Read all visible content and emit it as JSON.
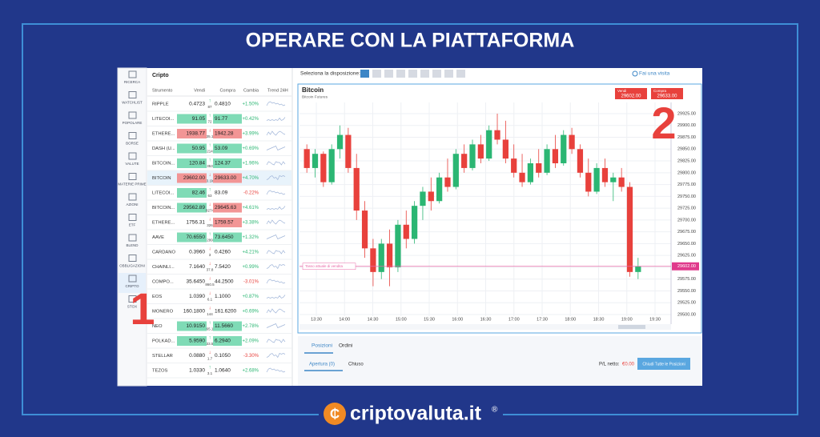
{
  "title": "OPERARE CON LA PIATTAFORMA",
  "sidebar": {
    "items": [
      "RICERCA",
      "WATCHLIST",
      "POPOLARE",
      "BORSE",
      "VALUTE",
      "MATERIE PRIME",
      "AZIONI",
      "ETF",
      "BLEND",
      "OBBLIGAZIONI",
      "CRIPTO",
      "STOX"
    ]
  },
  "table": {
    "section": "Cripto",
    "headers": [
      "Strumento",
      "Vendi",
      "Compra",
      "Cambia",
      "Trend 24H"
    ],
    "rows": [
      {
        "name": "RIPPLE",
        "sell": "0.4723",
        "spread": "87",
        "buy": "0.4810",
        "change": "+1.50%",
        "dir": "up",
        "sell_hl": null,
        "buy_hl": null
      },
      {
        "name": "LITECOI...",
        "sell": "91.05",
        "spread": "72",
        "buy": "91.77",
        "change": "+0.42%",
        "dir": "up",
        "sell_hl": "up",
        "buy_hl": "up"
      },
      {
        "name": "ETHERE...",
        "sell": "1938.77",
        "spread": "35.1",
        "buy": "1942.28",
        "change": "+3.99%",
        "dir": "down",
        "sell_hl": "down",
        "buy_hl": "down"
      },
      {
        "name": "DASH (U...",
        "sell": "50.95",
        "spread": "214",
        "buy": "53.09",
        "change": "+0.69%",
        "dir": "up",
        "sell_hl": "up",
        "buy_hl": "up"
      },
      {
        "name": "BITCOIN...",
        "sell": "120.84",
        "spread": "353",
        "buy": "124.37",
        "change": "+1.96%",
        "dir": "up",
        "sell_hl": "up",
        "buy_hl": "up"
      },
      {
        "name": "BITCOIN",
        "sell": "29602.00",
        "spread": "3.1k",
        "buy": "29633.00",
        "change": "+4.70%",
        "dir": "down",
        "sell_hl": "down",
        "buy_hl": "down"
      },
      {
        "name": "LITECOI...",
        "sell": "82.46",
        "spread": "63",
        "buy": "83.09",
        "change": "-0.22%",
        "dir": "up",
        "sell_hl": "up",
        "buy_hl": null
      },
      {
        "name": "BITCOIN...",
        "sell": "29562.89",
        "spread": "8274",
        "buy": "29645.63",
        "change": "+4.61%",
        "dir": "down",
        "sell_hl": "up",
        "buy_hl": "down"
      },
      {
        "name": "ETHERE...",
        "sell": "1756.31",
        "spread": "326",
        "buy": "1759.57",
        "change": "+3.38%",
        "dir": "down",
        "sell_hl": null,
        "buy_hl": "down"
      },
      {
        "name": "AAVE",
        "sell": "70.6550",
        "spread": "299",
        "buy": "73.6450",
        "change": "+1.32%",
        "dir": "up",
        "sell_hl": "up",
        "buy_hl": "up"
      },
      {
        "name": "CARDANO",
        "sell": "0.3960",
        "spread": "3",
        "buy": "0.4260",
        "change": "+4.21%",
        "dir": "down",
        "sell_hl": null,
        "buy_hl": null
      },
      {
        "name": "CHAINLI...",
        "sell": "7.1640",
        "spread": "37.8",
        "buy": "7.5420",
        "change": "+0.99%",
        "dir": "down",
        "sell_hl": null,
        "buy_hl": null
      },
      {
        "name": "COMPO...",
        "sell": "35.6450",
        "spread": "860.5",
        "buy": "44.2500",
        "change": "-3.01%",
        "dir": "down",
        "sell_hl": null,
        "buy_hl": null
      },
      {
        "name": "EOS",
        "sell": "1.0390",
        "spread": "6.1",
        "buy": "1.1000",
        "change": "+0.87%",
        "dir": "down",
        "sell_hl": null,
        "buy_hl": null
      },
      {
        "name": "MONERO",
        "sell": "160.1800",
        "spread": "144",
        "buy": "161.6200",
        "change": "+0.69%",
        "dir": "down",
        "sell_hl": null,
        "buy_hl": null
      },
      {
        "name": "NEO",
        "sell": "10.9150",
        "spread": "65.1",
        "buy": "11.5660",
        "change": "+2.78%",
        "dir": "up",
        "sell_hl": "up",
        "buy_hl": "up"
      },
      {
        "name": "POLKAD...",
        "sell": "5.9590",
        "spread": "33.5",
        "buy": "6.2940",
        "change": "+2.09%",
        "dir": "up",
        "sell_hl": "up",
        "buy_hl": "up"
      },
      {
        "name": "STELLAR",
        "sell": "0.0880",
        "spread": "1.7",
        "buy": "0.1050",
        "change": "-3.30%",
        "dir": "down",
        "sell_hl": null,
        "buy_hl": null
      },
      {
        "name": "TEZOS",
        "sell": "1.0330",
        "spread": "3.1",
        "buy": "1.0640",
        "change": "+2.68%",
        "dir": "up",
        "sell_hl": null,
        "buy_hl": null
      }
    ]
  },
  "chart": {
    "layout_label": "Seleziona la disposizione:",
    "visit_label": "Fai una visita",
    "instrument": "Bitcoin",
    "instrument_sub": "Bitcoin Futures",
    "sell_box": {
      "label": "Vendi",
      "value": "29602.00"
    },
    "buy_box": {
      "label": "Compra",
      "value": "29633.00"
    },
    "ylim": [
      29485,
      29940
    ],
    "yticks": [
      {
        "value": 29500,
        "label": "29500.00"
      },
      {
        "value": 29525,
        "label": "29525.00"
      },
      {
        "value": 29550,
        "label": "29550.00"
      },
      {
        "value": 29575,
        "label": "29575.00"
      },
      {
        "value": 29600,
        "label": "29600.00"
      },
      {
        "value": 29625,
        "label": "29625.00"
      },
      {
        "value": 29650,
        "label": "29650.00"
      },
      {
        "value": 29675,
        "label": "29675.00"
      },
      {
        "value": 29700,
        "label": "29700.00"
      },
      {
        "value": 29725,
        "label": "29725.00"
      },
      {
        "value": 29750,
        "label": "29750.00"
      },
      {
        "value": 29775,
        "label": "29775.00"
      },
      {
        "value": 29800,
        "label": "29800.00"
      },
      {
        "value": 29825,
        "label": "29825.00"
      },
      {
        "value": 29850,
        "label": "29850.00"
      },
      {
        "value": 29875,
        "label": "29875.00"
      },
      {
        "value": 29900,
        "label": "29900.00"
      },
      {
        "value": 29925,
        "label": "29925.00"
      }
    ],
    "times": [
      "13:30",
      "14:00",
      "14:30",
      "15:00",
      "15:30",
      "16:00",
      "16:30",
      "17:00",
      "17:30",
      "18:00",
      "18:30",
      "19:00",
      "19:30"
    ],
    "candles": [
      [
        29850,
        29860,
        29800,
        29810
      ],
      [
        29810,
        29850,
        29790,
        29840
      ],
      [
        29840,
        29845,
        29770,
        29780
      ],
      [
        29780,
        29860,
        29775,
        29850
      ],
      [
        29850,
        29900,
        29830,
        29880
      ],
      [
        29880,
        29895,
        29800,
        29810
      ],
      [
        29810,
        29840,
        29700,
        29720
      ],
      [
        29720,
        29740,
        29620,
        29640
      ],
      [
        29640,
        29660,
        29560,
        29590
      ],
      [
        29590,
        29660,
        29575,
        29650
      ],
      [
        29650,
        29680,
        29560,
        29600
      ],
      [
        29600,
        29700,
        29590,
        29690
      ],
      [
        29690,
        29720,
        29640,
        29660
      ],
      [
        29660,
        29740,
        29650,
        29730
      ],
      [
        29730,
        29770,
        29700,
        29760
      ],
      [
        29760,
        29790,
        29720,
        29740
      ],
      [
        29740,
        29800,
        29735,
        29790
      ],
      [
        29790,
        29830,
        29760,
        29770
      ],
      [
        29770,
        29850,
        29765,
        29840
      ],
      [
        29840,
        29860,
        29800,
        29810
      ],
      [
        29810,
        29870,
        29805,
        29860
      ],
      [
        29860,
        29880,
        29820,
        29830
      ],
      [
        29830,
        29900,
        29825,
        29890
      ],
      [
        29890,
        29925,
        29860,
        29870
      ],
      [
        29870,
        29910,
        29820,
        29830
      ],
      [
        29830,
        29860,
        29790,
        29800
      ],
      [
        29800,
        29840,
        29770,
        29780
      ],
      [
        29780,
        29830,
        29775,
        29820
      ],
      [
        29820,
        29850,
        29790,
        29800
      ],
      [
        29800,
        29860,
        29795,
        29850
      ],
      [
        29850,
        29880,
        29810,
        29820
      ],
      [
        29820,
        29890,
        29815,
        29880
      ],
      [
        29880,
        29895,
        29840,
        29850
      ],
      [
        29850,
        29860,
        29790,
        29800
      ],
      [
        29800,
        29830,
        29750,
        29760
      ],
      [
        29760,
        29820,
        29755,
        29810
      ],
      [
        29810,
        29830,
        29770,
        29780
      ],
      [
        29780,
        29800,
        29740,
        29790
      ],
      [
        29790,
        29810,
        29760,
        29770
      ],
      [
        29770,
        29780,
        29580,
        29590
      ],
      [
        29590,
        29620,
        29575,
        29602
      ]
    ],
    "sell_line": {
      "label": "Tasso attuale di vendita",
      "value": 29602,
      "tag": "29602.00"
    }
  },
  "positions": {
    "tabs": [
      "Posizioni",
      "Ordini"
    ],
    "subtabs": [
      "Apertura (0)",
      "Chiuso"
    ],
    "pl_label": "P/L netto:",
    "pl_value": "€0.00",
    "close_all": "Chiudi Tutte le Posizioni"
  },
  "markers": [
    "1",
    "2"
  ],
  "footer": {
    "brand": "criptovaluta.it",
    "mark": "®"
  }
}
